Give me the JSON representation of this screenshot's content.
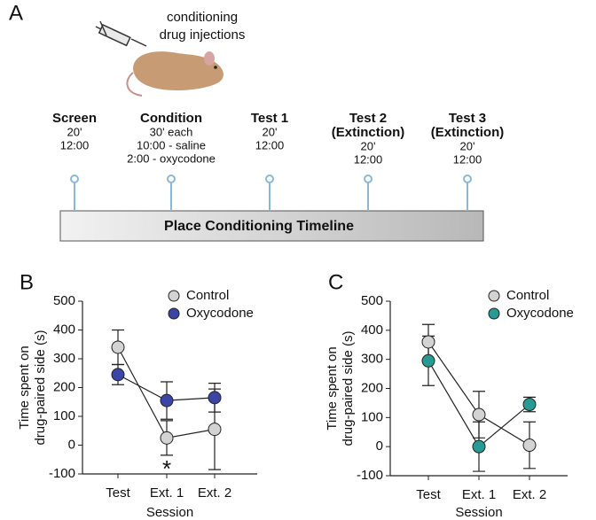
{
  "panel_a": {
    "label": "A",
    "caption": [
      "conditioning",
      "drug injections"
    ],
    "steps": [
      {
        "title": [
          "Screen"
        ],
        "lines": [
          "20'",
          "12:00"
        ]
      },
      {
        "title": [
          "Condition"
        ],
        "lines": [
          "30' each",
          "10:00 - saline",
          "2:00 - oxycodone"
        ]
      },
      {
        "title": [
          "Test 1"
        ],
        "lines": [
          "20'",
          "12:00"
        ]
      },
      {
        "title": [
          "Test 2",
          "(Extinction)"
        ],
        "lines": [
          "20'",
          "12:00"
        ]
      },
      {
        "title": [
          "Test 3",
          "(Extinction)"
        ],
        "lines": [
          "20'",
          "12:00"
        ]
      }
    ],
    "timeline": "Place Conditioning Timeline"
  },
  "chart_data": [
    {
      "type": "line",
      "panel_label": "B",
      "ylabel": [
        "Time spent on",
        "drug-paired side (s)"
      ],
      "xlabel": "Session",
      "categories": [
        "Test",
        "Ext. 1",
        "Ext. 2"
      ],
      "series": [
        {
          "name": "Control",
          "color": "#d3d3d3",
          "values": [
            340,
            25,
            55
          ],
          "errors": [
            60,
            60,
            140
          ]
        },
        {
          "name": "Oxycodone",
          "color": "#3b45a6",
          "values": [
            245,
            155,
            165
          ],
          "errors": [
            35,
            65,
            50
          ]
        }
      ],
      "ylim": [
        -100,
        500
      ],
      "yticks": [
        -100,
        0,
        100,
        200,
        300,
        400,
        500
      ],
      "annotations": [
        {
          "text": "*",
          "x": "Ext. 1"
        }
      ]
    },
    {
      "type": "line",
      "panel_label": "C",
      "ylabel": [
        "Time spent on",
        "drug-paired side (s)"
      ],
      "xlabel": "Session",
      "categories": [
        "Test",
        "Ext. 1",
        "Ext. 2"
      ],
      "series": [
        {
          "name": "Control",
          "color": "#d3d3d3",
          "values": [
            360,
            110,
            5
          ],
          "errors": [
            60,
            80,
            80
          ]
        },
        {
          "name": "Oxycodone",
          "color": "#279a93",
          "values": [
            295,
            0,
            145
          ],
          "errors": [
            85,
            85,
            25
          ]
        }
      ],
      "ylim": [
        -100,
        500
      ],
      "yticks": [
        -100,
        0,
        100,
        200,
        300,
        400,
        500
      ]
    }
  ]
}
